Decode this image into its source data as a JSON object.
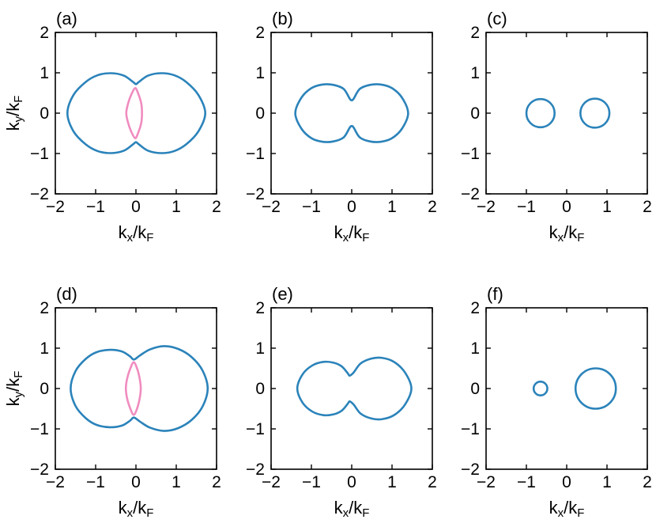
{
  "chart_data": [
    {
      "type": "line",
      "panel_label": "(a)",
      "xlabel": "k_x/k_F",
      "ylabel": "k_y/k_F",
      "xlim": [
        -2,
        2
      ],
      "ylim": [
        -2,
        2
      ],
      "xticks": [
        "−2",
        "−1",
        "0",
        "1",
        "2"
      ],
      "yticks": [
        "−2",
        "−1",
        "0",
        "1",
        "2"
      ],
      "grid": false,
      "series": [
        {
          "color": "#2b83ba",
          "x": [
            -0.07,
            -0.3,
            -0.62,
            -0.95,
            -1.25,
            -1.55,
            -1.7,
            -1.55,
            -1.25,
            -0.95,
            -0.62,
            -0.3,
            -0.07,
            0.0,
            0.07,
            0.3,
            0.62,
            0.95,
            1.25,
            1.55,
            1.72,
            1.55,
            1.25,
            0.95,
            0.62,
            0.3,
            0.07,
            0.0
          ],
          "y": [
            0.77,
            0.93,
            0.99,
            0.94,
            0.77,
            0.45,
            0.0,
            -0.45,
            -0.77,
            -0.94,
            -0.99,
            -0.93,
            -0.77,
            -0.72,
            -0.77,
            -0.93,
            -0.99,
            -0.94,
            -0.77,
            -0.45,
            0.0,
            0.45,
            0.77,
            0.94,
            0.99,
            0.93,
            0.77,
            0.72
          ]
        },
        {
          "color": "#f08cbf",
          "x": [
            -0.02,
            -0.12,
            -0.2,
            -0.24,
            -0.2,
            -0.12,
            -0.02,
            0.05,
            0.13,
            0.15,
            0.13,
            0.05
          ],
          "y": [
            0.62,
            0.45,
            0.22,
            0.0,
            -0.22,
            -0.45,
            -0.62,
            -0.5,
            -0.25,
            0.0,
            0.25,
            0.5
          ]
        }
      ]
    },
    {
      "type": "line",
      "panel_label": "(b)",
      "xlabel": "k_x/k_F",
      "ylabel": "",
      "xlim": [
        -2,
        2
      ],
      "ylim": [
        -2,
        2
      ],
      "xticks": [
        "−2",
        "−1",
        "0",
        "1",
        "2"
      ],
      "yticks": [
        "−2",
        "−1",
        "0",
        "1",
        "2"
      ],
      "grid": false,
      "series": [
        {
          "color": "#2b83ba",
          "x": [
            -0.05,
            -0.2,
            -0.45,
            -0.72,
            -1.0,
            -1.25,
            -1.4,
            -1.25,
            -1.0,
            -0.72,
            -0.45,
            -0.2,
            -0.05,
            0.0,
            0.05,
            0.2,
            0.45,
            0.72,
            1.0,
            1.25,
            1.4,
            1.25,
            1.0,
            0.72,
            0.45,
            0.2,
            0.05,
            0.0
          ],
          "y": [
            0.36,
            0.6,
            0.7,
            0.71,
            0.62,
            0.38,
            0.0,
            -0.38,
            -0.62,
            -0.71,
            -0.7,
            -0.6,
            -0.36,
            -0.32,
            -0.36,
            -0.6,
            -0.7,
            -0.71,
            -0.62,
            -0.38,
            0.0,
            0.38,
            0.62,
            0.71,
            0.7,
            0.6,
            0.36,
            0.32
          ]
        }
      ]
    },
    {
      "type": "line",
      "panel_label": "(c)",
      "xlabel": "k_x/k_F",
      "ylabel": "",
      "xlim": [
        -2,
        2
      ],
      "ylim": [
        -2,
        2
      ],
      "xticks": [
        "−2",
        "−1",
        "0",
        "1",
        "2"
      ],
      "yticks": [
        "−2",
        "−1",
        "0",
        "1",
        "2"
      ],
      "grid": false,
      "series": [
        {
          "color": "#2b83ba",
          "circle": {
            "cx": -0.65,
            "cy": 0.0,
            "r": 0.35
          }
        },
        {
          "color": "#2b83ba",
          "circle": {
            "cx": 0.7,
            "cy": 0.0,
            "r": 0.36
          }
        }
      ]
    },
    {
      "type": "line",
      "panel_label": "(d)",
      "xlabel": "k_x/k_F",
      "ylabel": "k_y/k_F",
      "xlim": [
        -2,
        2
      ],
      "ylim": [
        -2,
        2
      ],
      "xticks": [
        "−2",
        "−1",
        "0",
        "1",
        "2"
      ],
      "yticks": [
        "−2",
        "−1",
        "0",
        "1",
        "2"
      ],
      "grid": false,
      "series": [
        {
          "color": "#2b83ba",
          "x": [
            -0.15,
            -0.35,
            -0.65,
            -0.98,
            -1.25,
            -1.5,
            -1.62,
            -1.5,
            -1.25,
            -0.98,
            -0.65,
            -0.35,
            -0.15,
            -0.05,
            0.1,
            0.35,
            0.7,
            1.05,
            1.38,
            1.65,
            1.78,
            1.65,
            1.38,
            1.05,
            0.7,
            0.35,
            0.1,
            -0.05
          ],
          "y": [
            0.8,
            0.92,
            0.96,
            0.9,
            0.73,
            0.43,
            0.0,
            -0.43,
            -0.73,
            -0.9,
            -0.96,
            -0.92,
            -0.8,
            -0.72,
            -0.82,
            -0.97,
            -1.05,
            -0.98,
            -0.78,
            -0.45,
            0.0,
            0.45,
            0.78,
            0.98,
            1.05,
            0.97,
            0.82,
            0.72
          ]
        },
        {
          "color": "#f08cbf",
          "x": [
            -0.06,
            -0.15,
            -0.22,
            -0.25,
            -0.22,
            -0.15,
            -0.06,
            0.02,
            0.09,
            0.12,
            0.09,
            0.02
          ],
          "y": [
            0.65,
            0.47,
            0.24,
            0.0,
            -0.24,
            -0.47,
            -0.65,
            -0.52,
            -0.26,
            0.0,
            0.26,
            0.52
          ]
        }
      ]
    },
    {
      "type": "line",
      "panel_label": "(e)",
      "xlabel": "k_x/k_F",
      "ylabel": "",
      "xlim": [
        -2,
        2
      ],
      "ylim": [
        -2,
        2
      ],
      "xticks": [
        "−2",
        "−1",
        "0",
        "1",
        "2"
      ],
      "yticks": [
        "−2",
        "−1",
        "0",
        "1",
        "2"
      ],
      "grid": false,
      "series": [
        {
          "color": "#2b83ba",
          "x": [
            -0.1,
            -0.25,
            -0.45,
            -0.7,
            -0.98,
            -1.22,
            -1.35,
            -1.22,
            -0.98,
            -0.7,
            -0.45,
            -0.25,
            -0.1,
            -0.05,
            0.05,
            0.22,
            0.48,
            0.75,
            1.05,
            1.32,
            1.48,
            1.32,
            1.05,
            0.75,
            0.48,
            0.22,
            0.05,
            -0.05
          ],
          "y": [
            0.38,
            0.55,
            0.64,
            0.66,
            0.57,
            0.35,
            0.0,
            -0.35,
            -0.57,
            -0.66,
            -0.64,
            -0.55,
            -0.38,
            -0.32,
            -0.4,
            -0.62,
            -0.74,
            -0.76,
            -0.66,
            -0.4,
            0.0,
            0.4,
            0.66,
            0.76,
            0.74,
            0.62,
            0.4,
            0.32
          ]
        }
      ]
    },
    {
      "type": "line",
      "panel_label": "(f)",
      "xlabel": "k_x/k_F",
      "ylabel": "",
      "xlim": [
        -2,
        2
      ],
      "ylim": [
        -2,
        2
      ],
      "xticks": [
        "−2",
        "−1",
        "0",
        "1",
        "2"
      ],
      "yticks": [
        "−2",
        "−1",
        "0",
        "1",
        "2"
      ],
      "grid": false,
      "series": [
        {
          "color": "#2b83ba",
          "circle": {
            "cx": -0.65,
            "cy": 0.0,
            "r": 0.17
          }
        },
        {
          "color": "#2b83ba",
          "circle": {
            "cx": 0.72,
            "cy": 0.0,
            "r": 0.5
          }
        }
      ]
    }
  ]
}
